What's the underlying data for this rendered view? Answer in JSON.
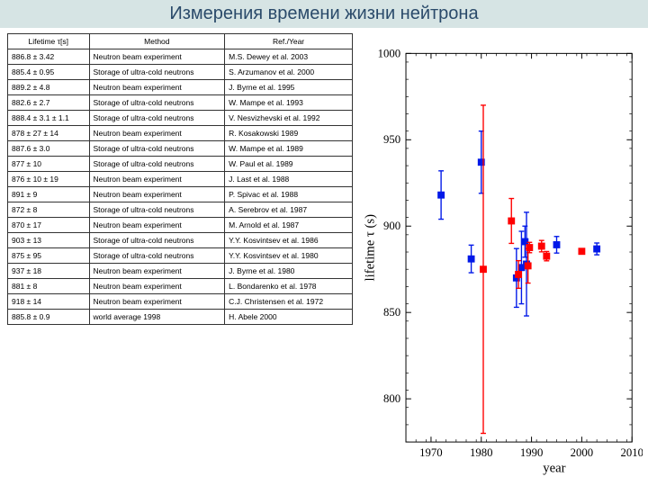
{
  "title": "Измерения времени жизни нейтрона",
  "table": {
    "headers": [
      "Lifetime τ[s]",
      "Method",
      "Ref./Year"
    ],
    "rows": [
      [
        "886.8 ± 3.42",
        "Neutron beam experiment",
        "M.S. Dewey et al. 2003"
      ],
      [
        "885.4 ± 0.95",
        "Storage of ultra-cold neutrons",
        "S. Arzumanov et al. 2000"
      ],
      [
        "889.2 ± 4.8",
        "Neutron beam experiment",
        "J. Byrne et al. 1995"
      ],
      [
        "882.6 ± 2.7",
        "Storage of ultra-cold neutrons",
        "W. Mampe et al. 1993"
      ],
      [
        "888.4 ± 3.1 ± 1.1",
        "Storage of ultra-cold neutrons",
        "V. Nesvizhevski et al. 1992"
      ],
      [
        "878 ± 27 ± 14",
        "Neutron beam experiment",
        "R. Kosakowski 1989"
      ],
      [
        "887.6 ± 3.0",
        "Storage of ultra-cold neutrons",
        "W. Mampe et al. 1989"
      ],
      [
        "877 ± 10",
        "Storage of ultra-cold neutrons",
        "W. Paul et al. 1989"
      ],
      [
        "876 ± 10 ± 19",
        "Neutron beam experiment",
        "J. Last et al. 1988"
      ],
      [
        "891 ± 9",
        "Neutron beam experiment",
        "P. Spivac et al. 1988"
      ],
      [
        "872 ± 8",
        "Storage of ultra-cold neutrons",
        "A. Serebrov et al. 1987"
      ],
      [
        "870 ± 17",
        "Neutron beam experiment",
        "M. Arnold et al. 1987"
      ],
      [
        "903 ± 13",
        "Storage of ultra-cold neutrons",
        "Y.Y. Kosvintsev et al. 1986"
      ],
      [
        "875 ± 95",
        "Storage of ultra-cold neutrons",
        "Y.Y. Kosvintsev et al. 1980"
      ],
      [
        "937 ± 18",
        "Neutron beam experiment",
        "J. Byrne et al. 1980"
      ],
      [
        "881 ± 8",
        "Neutron beam experiment",
        "L. Bondarenko et al. 1978"
      ],
      [
        "918 ± 14",
        "Neutron beam experiment",
        "C.J. Christensen et al. 1972"
      ],
      [
        "885.8 ± 0.9",
        "world average 1998",
        "H. Abele 2000"
      ]
    ]
  },
  "chart": {
    "xlabel": "year",
    "ylabel": "lifetime τ (s)",
    "xlim": [
      1965,
      2010
    ],
    "ylim": [
      775,
      1000
    ],
    "xticks": [
      1970,
      1980,
      1990,
      2000,
      2010
    ],
    "yticks": [
      800,
      850,
      900,
      950,
      1000
    ],
    "axis_color": "#000000",
    "grid_color": "#000000",
    "font_size": 13,
    "series": {
      "beam": {
        "color": "#0018e8",
        "marker": "square",
        "points": [
          {
            "x": 1972,
            "y": 918,
            "err": 14
          },
          {
            "x": 1978,
            "y": 881,
            "err": 8
          },
          {
            "x": 1980,
            "y": 937,
            "err": 18
          },
          {
            "x": 1987,
            "y": 870,
            "err": 17
          },
          {
            "x": 1988,
            "y": 876,
            "err": 21
          },
          {
            "x": 1988.7,
            "y": 891,
            "err": 9
          },
          {
            "x": 1989,
            "y": 878,
            "err": 30
          },
          {
            "x": 1995,
            "y": 889.2,
            "err": 4.8
          },
          {
            "x": 2003,
            "y": 886.8,
            "err": 3.42
          }
        ]
      },
      "storage": {
        "color": "#ff0000",
        "marker": "square",
        "points": [
          {
            "x": 1980.4,
            "y": 875,
            "err": 95
          },
          {
            "x": 1986,
            "y": 903,
            "err": 13
          },
          {
            "x": 1987.4,
            "y": 872,
            "err": 8
          },
          {
            "x": 1989.3,
            "y": 877,
            "err": 10
          },
          {
            "x": 1989.6,
            "y": 887.6,
            "err": 3.0
          },
          {
            "x": 1992,
            "y": 888.4,
            "err": 3.3
          },
          {
            "x": 1993,
            "y": 882.6,
            "err": 2.7
          },
          {
            "x": 2000,
            "y": 885.4,
            "err": 0.95
          }
        ]
      }
    }
  }
}
